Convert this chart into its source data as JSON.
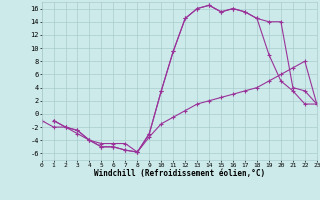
{
  "background_color": "#cdeaea",
  "grid_color": "#aacccc",
  "line_color": "#993399",
  "marker": "+",
  "markersize": 3,
  "linewidth": 0.8,
  "xlim": [
    0,
    23
  ],
  "ylim": [
    -7,
    17
  ],
  "xlabel": "Windchill (Refroidissement éolien,°C)",
  "xlabel_fontsize": 5.5,
  "ytick_values": [
    -6,
    -4,
    -2,
    0,
    2,
    4,
    6,
    8,
    10,
    12,
    14,
    16
  ],
  "xtick_values": [
    0,
    1,
    2,
    3,
    4,
    5,
    6,
    7,
    8,
    9,
    10,
    11,
    12,
    13,
    14,
    15,
    16,
    17,
    18,
    19,
    20,
    21,
    22,
    23
  ],
  "series": [
    {
      "x": [
        1,
        2,
        3,
        4,
        5,
        6,
        7,
        8,
        9,
        10,
        11,
        12,
        13,
        14,
        15,
        16,
        17,
        18,
        19,
        20,
        21,
        22,
        23
      ],
      "y": [
        -1.0,
        -2.0,
        -2.5,
        -4.0,
        -5.0,
        -5.0,
        -5.5,
        -5.8,
        -3.0,
        3.5,
        9.5,
        14.5,
        16.0,
        16.5,
        15.5,
        16.0,
        15.5,
        14.5,
        9.0,
        5.0,
        3.5,
        1.5,
        1.5
      ]
    },
    {
      "x": [
        1,
        2,
        3,
        4,
        5,
        6,
        7,
        8,
        9,
        10,
        11,
        12,
        13,
        14,
        15,
        16,
        17,
        18,
        19,
        20,
        21,
        22,
        23
      ],
      "y": [
        -1.0,
        -2.0,
        -2.5,
        -4.0,
        -5.0,
        -5.0,
        -5.5,
        -5.8,
        -3.0,
        3.5,
        9.5,
        14.5,
        16.0,
        16.5,
        15.5,
        16.0,
        15.5,
        14.5,
        14.0,
        14.0,
        4.0,
        3.5,
        1.5
      ]
    },
    {
      "x": [
        0,
        1,
        2,
        3,
        4,
        5,
        6,
        7,
        8,
        9,
        10,
        11,
        12,
        13,
        14,
        15,
        16,
        17,
        18,
        19,
        20,
        21,
        22,
        23
      ],
      "y": [
        -1.0,
        -2.0,
        -2.0,
        -3.0,
        -4.0,
        -4.5,
        -4.5,
        -4.5,
        -5.8,
        -3.5,
        -1.5,
        -0.5,
        0.5,
        1.5,
        2.0,
        2.5,
        3.0,
        3.5,
        4.0,
        5.0,
        6.0,
        7.0,
        8.0,
        1.5
      ]
    }
  ]
}
